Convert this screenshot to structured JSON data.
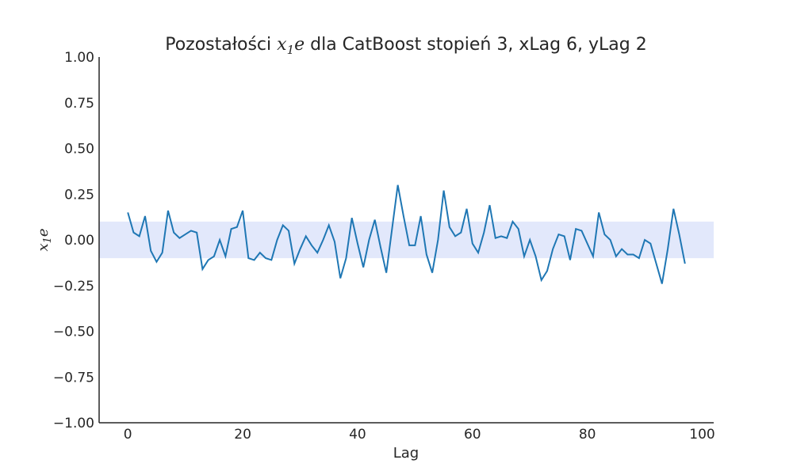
{
  "chart_data": {
    "type": "line",
    "title": {
      "prefix": "Pozostałości ",
      "math_base": "x",
      "math_sub": "1",
      "math_suffix": "e",
      "suffix": " dla CatBoost stopień 3, xLag 6, yLag 2"
    },
    "xlabel": "Lag",
    "ylabel": {
      "base": "x",
      "sub": "1",
      "suffix": "e"
    },
    "xlim": [
      -5,
      102
    ],
    "ylim": [
      -1.0,
      1.0
    ],
    "xticks": [
      "0",
      "20",
      "40",
      "60",
      "80",
      "100"
    ],
    "yticks": [
      "1.00",
      "0.75",
      "0.50",
      "0.25",
      "0.00",
      "−0.25",
      "−0.50",
      "−0.75",
      "−1.00"
    ],
    "confidence_band": [
      -0.1,
      0.1
    ],
    "grid": false,
    "colors": {
      "line": "#1f77b4",
      "band": "#e2e8fb",
      "axis": "#262626"
    },
    "series": [
      {
        "x": [
          0,
          1,
          2,
          3,
          4,
          5,
          6,
          7,
          8,
          9,
          10,
          11,
          12,
          13,
          14,
          15,
          16,
          17,
          18,
          19,
          20,
          21,
          22,
          23,
          24,
          25,
          26,
          27,
          28,
          29,
          30,
          31,
          32,
          33,
          34,
          35,
          36,
          37,
          38,
          39,
          40,
          41,
          42,
          43,
          44,
          45,
          46,
          47,
          48,
          49,
          50,
          51,
          52,
          53,
          54,
          55,
          56,
          57,
          58,
          59,
          60,
          61,
          62,
          63,
          64,
          65,
          66,
          67,
          68,
          69,
          70,
          71,
          72,
          73,
          74,
          75,
          76,
          77,
          78,
          79,
          80,
          81,
          82,
          83,
          84,
          85,
          86,
          87,
          88,
          89,
          90,
          91,
          92,
          93,
          94,
          95,
          96,
          97
        ],
        "values": [
          0.15,
          0.04,
          0.02,
          0.13,
          -0.06,
          -0.12,
          -0.07,
          0.16,
          0.04,
          0.01,
          0.03,
          0.05,
          0.04,
          -0.16,
          -0.11,
          -0.09,
          0.0,
          -0.09,
          0.06,
          0.07,
          0.16,
          -0.1,
          -0.11,
          -0.07,
          -0.1,
          -0.11,
          0.0,
          0.08,
          0.05,
          -0.13,
          -0.05,
          0.02,
          -0.03,
          -0.07,
          0.0,
          0.08,
          -0.01,
          -0.21,
          -0.1,
          0.12,
          -0.02,
          -0.15,
          0.0,
          0.11,
          -0.04,
          -0.18,
          0.06,
          0.3,
          0.13,
          -0.03,
          -0.03,
          0.13,
          -0.08,
          -0.18,
          0.0,
          0.27,
          0.07,
          0.02,
          0.04,
          0.17,
          -0.02,
          -0.07,
          0.04,
          0.19,
          0.01,
          0.02,
          0.01,
          0.1,
          0.06,
          -0.09,
          0.0,
          -0.09,
          -0.22,
          -0.17,
          -0.05,
          0.03,
          0.02,
          -0.11,
          0.06,
          0.05,
          -0.02,
          -0.09,
          0.15,
          0.03,
          0.0,
          -0.09,
          -0.05,
          -0.08,
          -0.08,
          -0.1,
          0.0,
          -0.02,
          -0.13,
          -0.24,
          -0.05,
          0.17,
          0.03,
          -0.13
        ]
      }
    ]
  }
}
